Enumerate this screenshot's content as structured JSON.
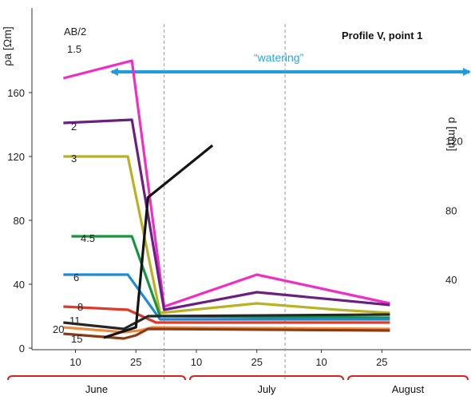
{
  "chart_data": {
    "type": "line",
    "title": "Profile V, point 1",
    "ylabel": "ρa [Ωm]",
    "ylabel_right": "d [mm]",
    "legend_title": "AB/2",
    "annotation": "“watering”",
    "ylim": [
      0,
      180
    ],
    "yticks": [
      0,
      40,
      80,
      120,
      160
    ],
    "yticks_right": [
      40,
      80,
      120
    ],
    "xticks": [
      "10",
      "25",
      "10",
      "25",
      "10",
      "25"
    ],
    "xticks_day": [
      10,
      25,
      40,
      55,
      71,
      86
    ],
    "months": [
      "June",
      "July",
      "August"
    ],
    "x_unit": "day since 1 June",
    "series": [
      {
        "name": "1.5",
        "color": "#ee2ec6",
        "x": [
          7,
          24,
          32,
          55,
          88
        ],
        "y": [
          169,
          180,
          26,
          46,
          28
        ]
      },
      {
        "name": "2",
        "color": "#6b2080",
        "x": [
          7,
          24,
          32,
          55,
          88
        ],
        "y": [
          141,
          143,
          24,
          35,
          27
        ]
      },
      {
        "name": "3",
        "color": "#b9b225",
        "x": [
          7,
          23,
          31,
          55,
          75,
          88
        ],
        "y": [
          120,
          120,
          22,
          28,
          24,
          22
        ]
      },
      {
        "name": "4.5",
        "color": "#16953f",
        "x": [
          9,
          24,
          31,
          88
        ],
        "y": [
          70,
          70,
          20,
          19
        ]
      },
      {
        "name": "6",
        "color": "#1e8ad2",
        "x": [
          7,
          23,
          31,
          88
        ],
        "y": [
          46,
          46,
          18,
          18
        ]
      },
      {
        "name": "8",
        "color": "#dd3a2a",
        "x": [
          7,
          23,
          30,
          88
        ],
        "y": [
          26,
          24,
          16,
          16
        ]
      },
      {
        "name": "11",
        "color": "#262626",
        "x": [
          7,
          22,
          25,
          28,
          88
        ],
        "y": [
          16,
          12,
          16,
          20,
          21
        ]
      },
      {
        "name": "20",
        "color": "#f08a3c",
        "x": [
          7,
          22,
          26,
          29,
          88
        ],
        "y": [
          13,
          10,
          11,
          13,
          12
        ]
      },
      {
        "name": "15",
        "color": "#8b3a12",
        "x": [
          7,
          22,
          25,
          28,
          88
        ],
        "y": [
          9,
          6,
          8,
          12,
          11
        ]
      }
    ],
    "precipitation": {
      "name": "d",
      "color": "#141414",
      "x": [
        17,
        25,
        28,
        44
      ],
      "y": [
        6,
        12,
        87,
        117
      ]
    }
  }
}
